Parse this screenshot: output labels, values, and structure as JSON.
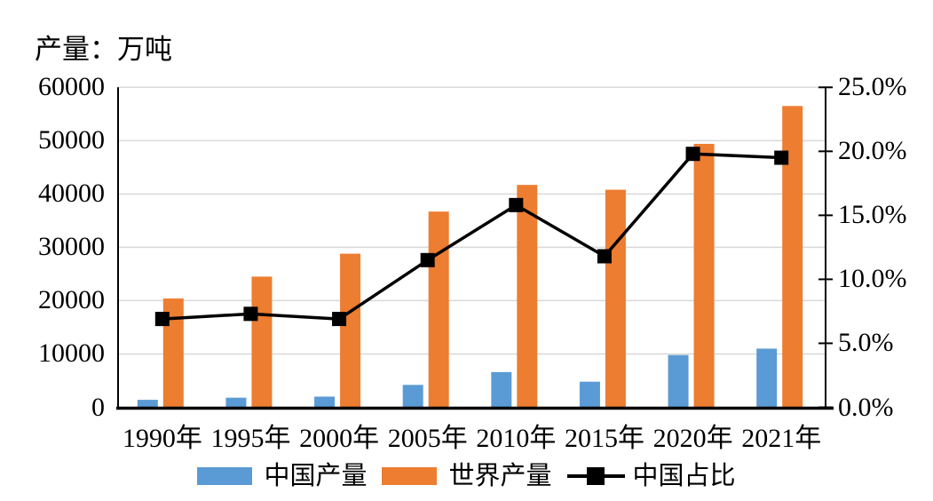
{
  "page": {
    "background": "#FFFFFF"
  },
  "chart_data": {
    "type": "combo-bar-line",
    "title": "产量：万吨",
    "categories": [
      "1990年",
      "1995年",
      "2000年",
      "2005年",
      "2010年",
      "2015年",
      "2020年",
      "2021年"
    ],
    "series": [
      {
        "name": "中国产量",
        "type": "bar",
        "axis": "left",
        "color": "#5B9BD5",
        "values": [
          1400,
          1800,
          2000,
          4200,
          6600,
          4800,
          9800,
          11000
        ]
      },
      {
        "name": "世界产量",
        "type": "bar",
        "axis": "left",
        "color": "#ED7D31",
        "values": [
          20400,
          24500,
          28800,
          36700,
          41700,
          40800,
          49400,
          56500
        ]
      },
      {
        "name": "中国占比",
        "type": "line",
        "axis": "right",
        "color": "#000000",
        "marker": "square",
        "values_percent": [
          6.9,
          7.3,
          6.9,
          11.5,
          15.8,
          11.8,
          19.8,
          19.5
        ]
      }
    ],
    "left_axis": {
      "title": "产量：万吨",
      "min": 0,
      "max": 60000,
      "step": 10000,
      "tick_labels": [
        "0",
        "10000",
        "20000",
        "30000",
        "40000",
        "50000",
        "60000"
      ]
    },
    "right_axis": {
      "min": 0,
      "max": 25,
      "step": 5,
      "tick_labels": [
        "0.0%",
        "5.0%",
        "10.0%",
        "15.0%",
        "20.0%",
        "25.0%"
      ]
    },
    "grid": "horizontal",
    "legend_position": "bottom"
  },
  "colors": {
    "china_bar": "#5B9BD5",
    "world_bar": "#ED7D31",
    "share_line": "#000000",
    "gridline": "#D9D9D9",
    "axis": "#000000",
    "text": "#000000",
    "background": "#FFFFFF"
  }
}
